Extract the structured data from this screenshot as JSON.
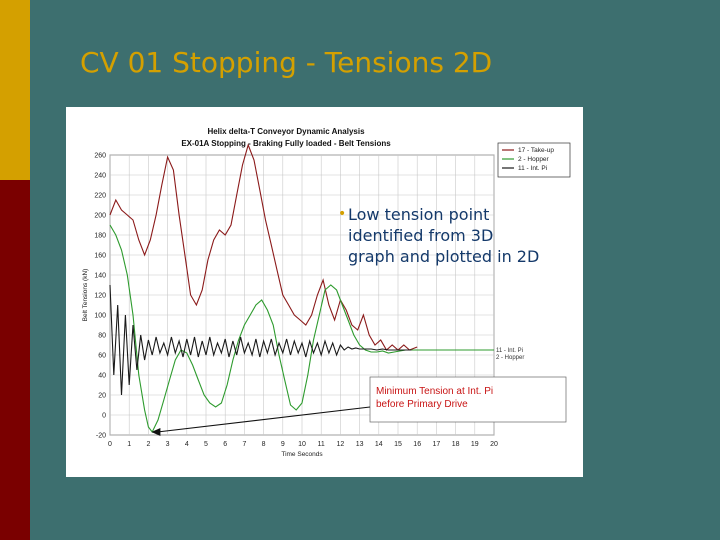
{
  "slide": {
    "title": "CV 01 Stopping - Tensions 2D",
    "colors": {
      "background": "#3d6f6f",
      "gold": "#d4a000",
      "red": "#7a0000",
      "text": "#14396a"
    },
    "bullet_icon": "bullet-dot-icon",
    "bullet": [
      "Low tension point",
      "identified from 3D",
      "graph and plotted in 2D"
    ]
  },
  "chart_data": {
    "type": "line",
    "title": "Helix delta-T Conveyor Dynamic Analysis",
    "subtitle": "EX-01A Stopping - Braking Fully loaded - Belt Tensions",
    "xlabel": "Time Seconds",
    "ylabel": "Belt Tensions (kN)",
    "xlim": [
      0,
      20
    ],
    "ylim": [
      -20,
      260
    ],
    "xticks": [
      0,
      1,
      2,
      3,
      4,
      5,
      6,
      7,
      8,
      9,
      10,
      11,
      12,
      13,
      14,
      15,
      16,
      17,
      18,
      19,
      20
    ],
    "yticks": [
      -20,
      0,
      20,
      40,
      60,
      80,
      100,
      120,
      140,
      160,
      180,
      200,
      220,
      240,
      260
    ],
    "grid": true,
    "legend_position": "top-right",
    "legend": [
      "17 - Take-up",
      "2 - Hopper",
      "11 - Int. Pi"
    ],
    "end_labels": [
      "11 - Int. Pi",
      "2 - Hopper"
    ],
    "annotation": [
      "Minimum Tension at Int. Pi",
      "before Primary Drive"
    ],
    "annotation_point": [
      2.0,
      -17
    ],
    "series": [
      {
        "color": "#8b1a1a",
        "x": [
          0.0,
          0.3,
          0.6,
          0.9,
          1.2,
          1.5,
          1.8,
          2.1,
          2.4,
          2.7,
          3.0,
          3.3,
          3.6,
          3.9,
          4.2,
          4.5,
          4.8,
          5.1,
          5.4,
          5.7,
          6.0,
          6.3,
          6.6,
          6.9,
          7.2,
          7.5,
          7.8,
          8.1,
          8.4,
          8.7,
          9.0,
          9.3,
          9.6,
          9.9,
          10.2,
          10.5,
          10.8,
          11.1,
          11.4,
          11.7,
          12.0,
          12.3,
          12.6,
          12.9,
          13.2,
          13.5,
          13.8,
          14.1,
          14.4,
          14.7,
          15.0,
          15.3,
          15.6,
          16.0
        ],
        "y": [
          200,
          215,
          205,
          200,
          195,
          175,
          160,
          175,
          200,
          230,
          258,
          245,
          200,
          160,
          120,
          110,
          125,
          155,
          175,
          185,
          180,
          190,
          220,
          250,
          270,
          255,
          225,
          195,
          170,
          145,
          120,
          110,
          100,
          95,
          90,
          100,
          120,
          135,
          110,
          95,
          115,
          105,
          90,
          85,
          100,
          80,
          70,
          75,
          65,
          70,
          65,
          70,
          65,
          68
        ]
      },
      {
        "color": "#2e9b2e",
        "x": [
          0.0,
          0.3,
          0.6,
          0.9,
          1.2,
          1.5,
          1.8,
          2.0,
          2.2,
          2.5,
          2.8,
          3.1,
          3.4,
          3.7,
          4.0,
          4.3,
          4.6,
          4.9,
          5.2,
          5.5,
          5.8,
          6.1,
          6.4,
          6.7,
          7.0,
          7.3,
          7.6,
          7.9,
          8.2,
          8.5,
          8.8,
          9.1,
          9.4,
          9.7,
          10.0,
          10.3,
          10.6,
          10.9,
          11.2,
          11.5,
          11.8,
          12.1,
          12.4,
          12.7,
          13.0,
          13.3,
          13.6,
          13.9,
          14.2,
          14.5,
          14.8,
          15.1,
          15.4,
          15.8,
          16.3,
          17.0,
          18.0,
          19.0,
          20.0
        ],
        "y": [
          190,
          180,
          165,
          140,
          100,
          40,
          5,
          -12,
          -17,
          -5,
          15,
          35,
          55,
          65,
          62,
          50,
          35,
          20,
          12,
          8,
          12,
          30,
          55,
          75,
          90,
          100,
          110,
          115,
          105,
          90,
          60,
          35,
          10,
          5,
          12,
          40,
          75,
          100,
          125,
          130,
          125,
          110,
          95,
          80,
          70,
          65,
          63,
          63,
          64,
          62,
          63,
          64,
          65,
          65,
          65,
          65,
          65,
          65,
          65
        ]
      },
      {
        "color": "#1a1a1a",
        "x": [
          0.0,
          0.2,
          0.4,
          0.6,
          0.8,
          1.0,
          1.2,
          1.4,
          1.6,
          1.8,
          2.0,
          2.2,
          2.4,
          2.6,
          2.8,
          3.0,
          3.2,
          3.4,
          3.6,
          3.8,
          4.0,
          4.2,
          4.4,
          4.6,
          4.8,
          5.0,
          5.2,
          5.4,
          5.6,
          5.8,
          6.0,
          6.2,
          6.4,
          6.6,
          6.8,
          7.0,
          7.2,
          7.4,
          7.6,
          7.8,
          8.0,
          8.2,
          8.4,
          8.6,
          8.8,
          9.0,
          9.2,
          9.4,
          9.6,
          9.8,
          10.0,
          10.2,
          10.4,
          10.6,
          10.8,
          11.0,
          11.2,
          11.4,
          11.6,
          11.8,
          12.0,
          12.2,
          12.4,
          12.6,
          12.8,
          13.0,
          13.3,
          13.6,
          13.9,
          14.2,
          14.5,
          14.8,
          15.1,
          15.4,
          15.7
        ],
        "y": [
          130,
          40,
          110,
          20,
          100,
          30,
          90,
          45,
          80,
          55,
          75,
          60,
          78,
          62,
          72,
          60,
          78,
          62,
          74,
          58,
          76,
          60,
          78,
          58,
          74,
          60,
          78,
          60,
          72,
          62,
          76,
          58,
          74,
          60,
          78,
          62,
          72,
          60,
          76,
          58,
          74,
          62,
          76,
          60,
          72,
          62,
          76,
          60,
          74,
          62,
          72,
          58,
          74,
          62,
          72,
          60,
          74,
          62,
          72,
          60,
          70,
          65,
          68,
          66,
          67,
          66,
          66,
          66,
          65,
          66,
          65,
          65,
          65,
          65,
          65
        ]
      }
    ]
  }
}
